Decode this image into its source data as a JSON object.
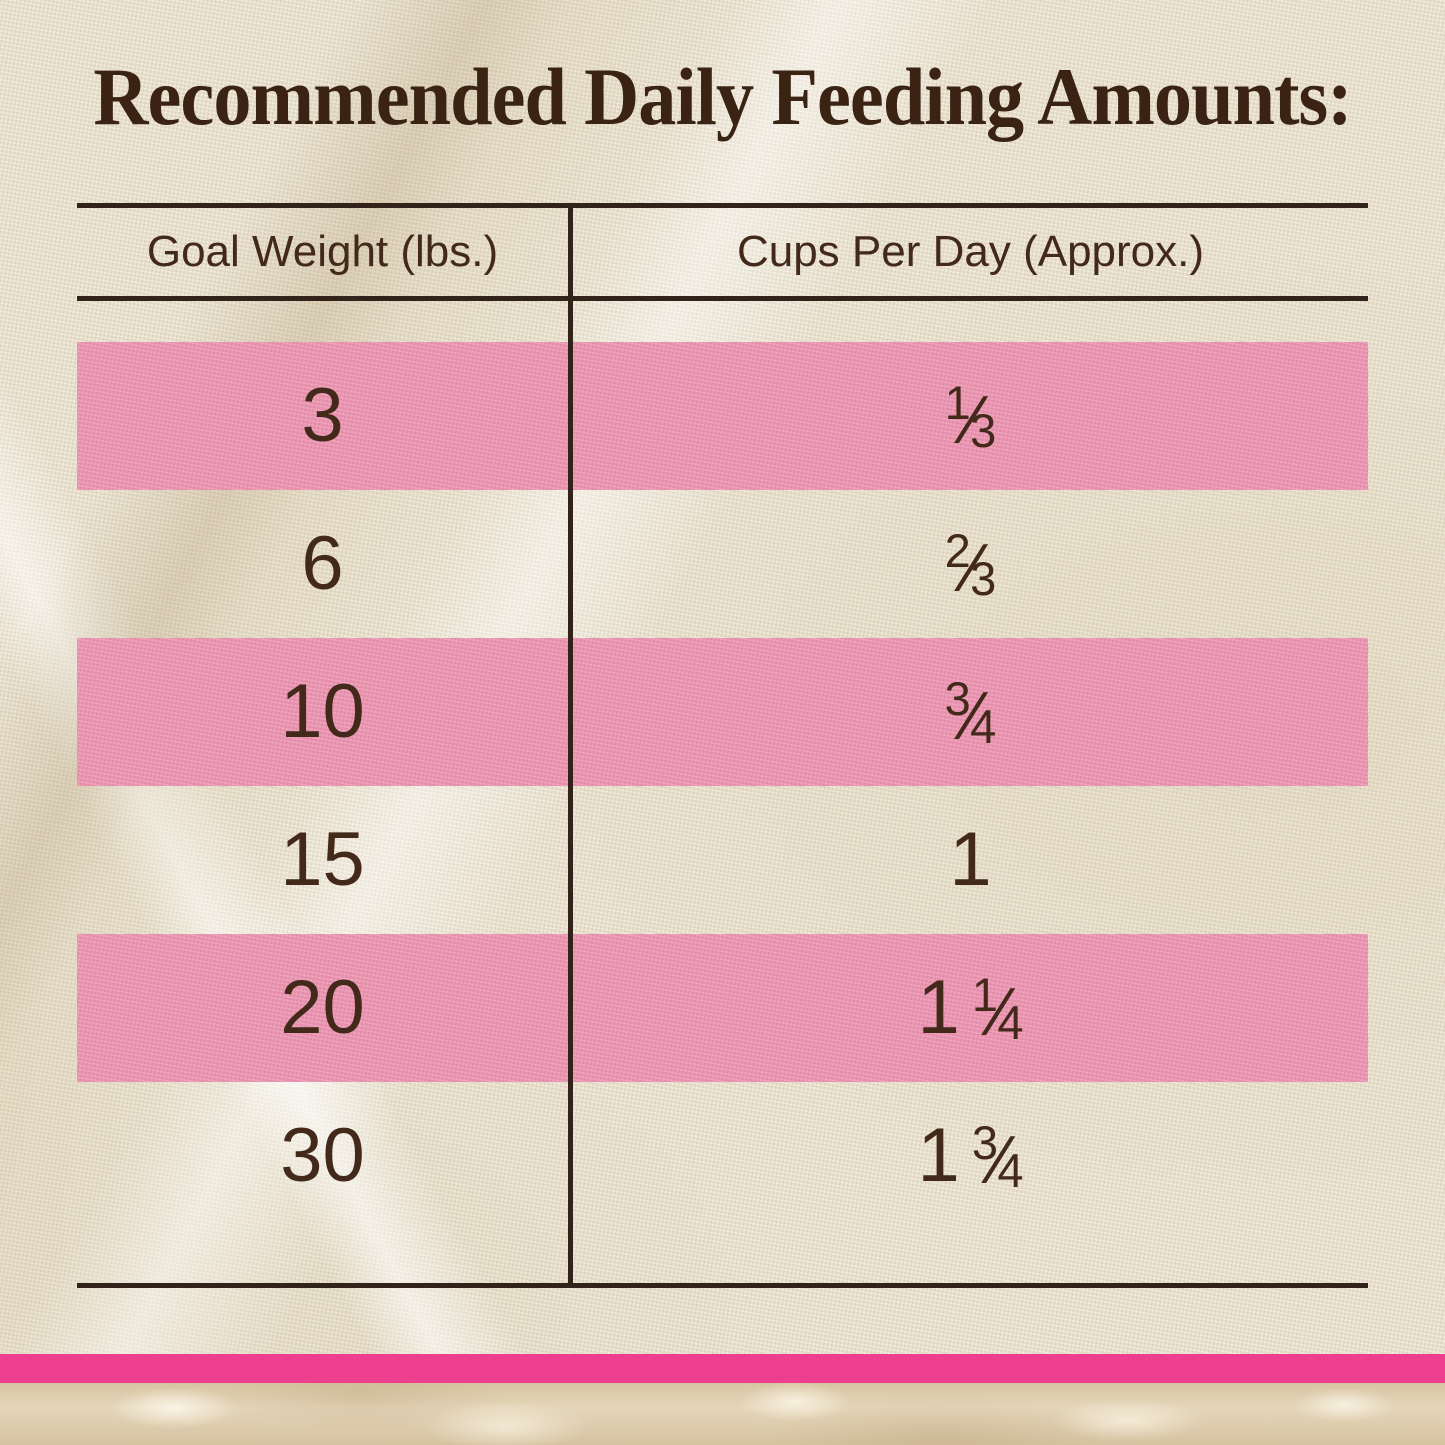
{
  "title": "Recommended Daily Feeding Amounts:",
  "table": {
    "headers": [
      "Goal Weight (lbs.)",
      "Cups Per Day (Approx.)"
    ],
    "rows": [
      {
        "weight": "3",
        "cups": {
          "whole": "",
          "num": "1",
          "den": "3"
        },
        "highlight": true
      },
      {
        "weight": "6",
        "cups": {
          "whole": "",
          "num": "2",
          "den": "3"
        },
        "highlight": false
      },
      {
        "weight": "10",
        "cups": {
          "whole": "",
          "num": "3",
          "den": "4"
        },
        "highlight": true
      },
      {
        "weight": "15",
        "cups": {
          "whole": "1",
          "num": "",
          "den": ""
        },
        "highlight": false
      },
      {
        "weight": "20",
        "cups": {
          "whole": "1",
          "num": "1",
          "den": "4"
        },
        "highlight": true
      },
      {
        "weight": "30",
        "cups": {
          "whole": "1",
          "num": "3",
          "den": "4"
        },
        "highlight": false
      }
    ],
    "fraction_slash": "⁄"
  },
  "chart_data": {
    "type": "table",
    "title": "Recommended Daily Feeding Amounts:",
    "columns": [
      "Goal Weight (lbs.)",
      "Cups Per Day (Approx.)"
    ],
    "rows": [
      [
        "3",
        "1/3"
      ],
      [
        "6",
        "2/3"
      ],
      [
        "10",
        "3/4"
      ],
      [
        "15",
        "1"
      ],
      [
        "20",
        "1 1/4"
      ],
      [
        "30",
        "1 3/4"
      ]
    ],
    "highlighted_row_indices": [
      0,
      2,
      4
    ],
    "legend_position": "none",
    "grid": "partial-rules"
  },
  "colors": {
    "row_highlight": "#ea92af",
    "accent_bar": "#ee3e8e",
    "text_brown": "#42291a",
    "title_brown": "#3a2313",
    "line_brown": "#32231a"
  }
}
